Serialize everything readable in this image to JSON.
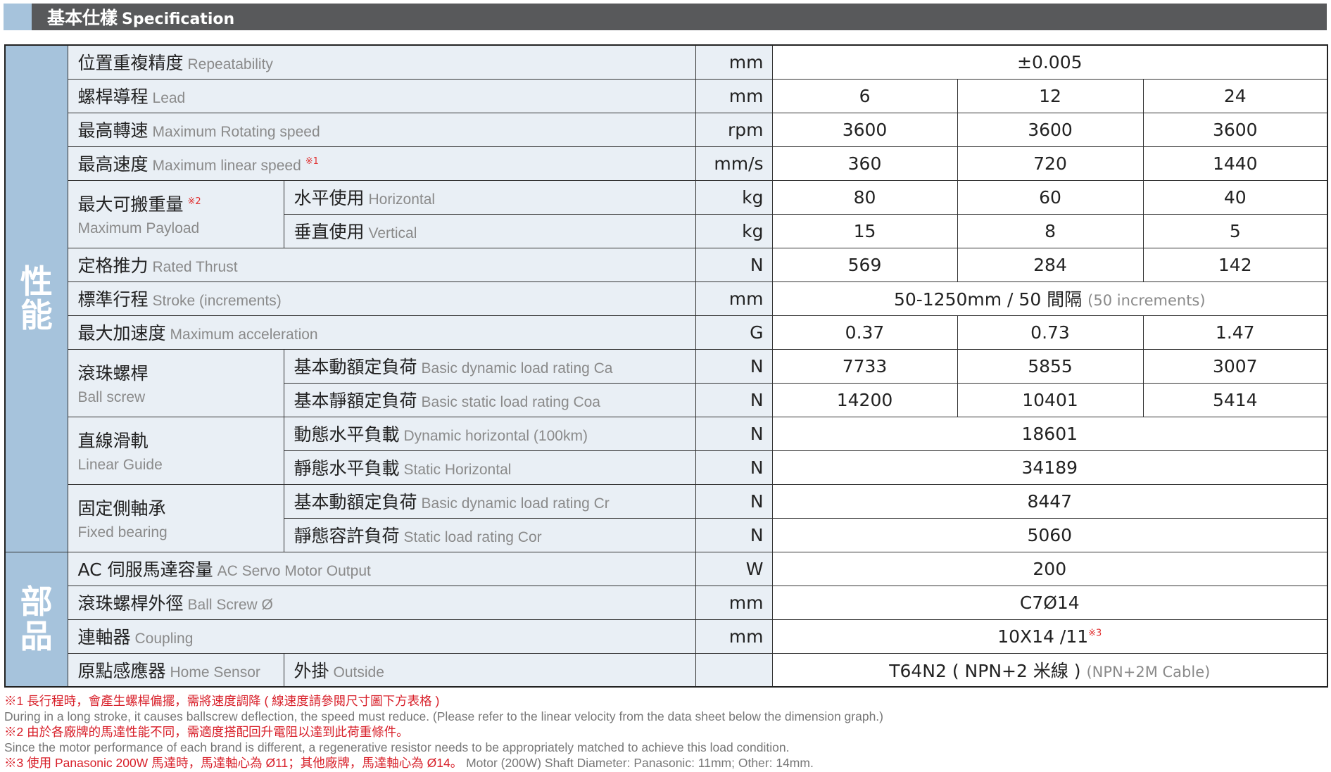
{
  "header": {
    "title_zh": "基本仕樣",
    "title_en": "Specification",
    "accent": "#a6c3dc",
    "bar": "#58595b"
  },
  "groups": [
    {
      "category": "性能",
      "rows": [
        {
          "zh": "位置重複精度",
          "en": "Repeatability",
          "unit": "mm",
          "values": [
            "±0.005"
          ]
        },
        {
          "zh": "螺桿導程",
          "en": "Lead",
          "unit": "mm",
          "values": [
            "6",
            "12",
            "24"
          ]
        },
        {
          "zh": "最高轉速",
          "en": "Maximum Rotating speed",
          "unit": "rpm",
          "values": [
            "3600",
            "3600",
            "3600"
          ]
        },
        {
          "zh": "最高速度",
          "en": "Maximum linear speed",
          "note": "※1",
          "unit": "mm/s",
          "values": [
            "360",
            "720",
            "1440"
          ]
        },
        {
          "zh": "最大可搬重量",
          "en": "Maximum Payload",
          "note": "※2",
          "subs": [
            {
              "zh": "水平使用",
              "en": "Horizontal",
              "unit": "kg",
              "values": [
                "80",
                "60",
                "40"
              ]
            },
            {
              "zh": "垂直使用",
              "en": "Vertical",
              "unit": "kg",
              "values": [
                "15",
                "8",
                "5"
              ]
            }
          ]
        },
        {
          "zh": "定格推力",
          "en": "Rated Thrust",
          "unit": "N",
          "values": [
            "569",
            "284",
            "142"
          ]
        },
        {
          "zh": "標準行程",
          "en": "Stroke (increments)",
          "unit": "mm",
          "values": [
            "50-1250mm / 50 間隔"
          ],
          "value_en": "(50 increments)"
        },
        {
          "zh": "最大加速度",
          "en": "Maximum acceleration",
          "unit": "G",
          "values": [
            "0.37",
            "0.73",
            "1.47"
          ]
        },
        {
          "zh": "滾珠螺桿",
          "en": "Ball screw",
          "subs": [
            {
              "zh": "基本動額定負荷",
              "en": "Basic dynamic load rating Ca",
              "unit": "N",
              "values": [
                "7733",
                "5855",
                "3007"
              ]
            },
            {
              "zh": "基本靜額定負荷",
              "en": "Basic static load rating Coa",
              "unit": "N",
              "values": [
                "14200",
                "10401",
                "5414"
              ]
            }
          ]
        },
        {
          "zh": "直線滑軌",
          "en": "Linear Guide",
          "subs": [
            {
              "zh": "動態水平負載",
              "en": "Dynamic horizontal (100km)",
              "unit": "N",
              "values": [
                "18601"
              ]
            },
            {
              "zh": "靜態水平負載",
              "en": "Static Horizontal",
              "unit": "N",
              "values": [
                "34189"
              ]
            }
          ]
        },
        {
          "zh": "固定側軸承",
          "en": "Fixed bearing",
          "subs": [
            {
              "zh": "基本動額定負荷",
              "en": "Basic dynamic load rating Cr",
              "unit": "N",
              "values": [
                "8447"
              ]
            },
            {
              "zh": "靜態容許負荷",
              "en": "Static load rating Cor",
              "unit": "N",
              "values": [
                "5060"
              ]
            }
          ]
        }
      ]
    },
    {
      "category": "部品",
      "rows": [
        {
          "zh": "AC 伺服馬達容量",
          "en": "AC Servo Motor Output",
          "unit": "W",
          "values": [
            "200"
          ]
        },
        {
          "zh": "滾珠螺桿外徑",
          "en": "Ball Screw Ø",
          "unit": "mm",
          "values": [
            "C7Ø14"
          ]
        },
        {
          "zh": "連軸器",
          "en": "Coupling",
          "unit": "mm",
          "values": [
            "10X14 /11"
          ],
          "value_note": "※3"
        },
        {
          "zh": "原點感應器",
          "en": "Home Sensor",
          "inline_sub": {
            "zh": "外掛",
            "en": "Outside"
          },
          "unit": "",
          "values": [
            "T64N2 ( NPN+2 米線 )"
          ],
          "value_en": "(NPN+2M Cable)"
        }
      ]
    }
  ],
  "notes": [
    {
      "text": "※1 長行程時，會產生螺桿偏擺，需將速度調降 ( 線速度請參閱尺寸圖下方表格 )",
      "color": "red"
    },
    {
      "text": "During in a long stroke, it causes ballscrew deflection, the speed must reduce. (Please refer to the linear velocity from the data sheet below the dimension graph.)",
      "color": "gray"
    },
    {
      "text": "※2 由於各廠牌的馬達性能不同，需適度搭配回升電阻以達到此荷重條件。",
      "color": "red"
    },
    {
      "text": "Since the motor performance of each brand is different, a regenerative resistor needs to be appropriately matched to achieve this load condition.",
      "color": "gray"
    },
    {
      "text": "※3 使用 Panasonic 200W 馬達時，馬達軸心為 Ø11；其他廠牌，馬達軸心為 Ø14。",
      "tail": "Motor (200W) Shaft Diameter: Panasonic: 11mm; Other: 14mm.",
      "color": "red"
    }
  ]
}
